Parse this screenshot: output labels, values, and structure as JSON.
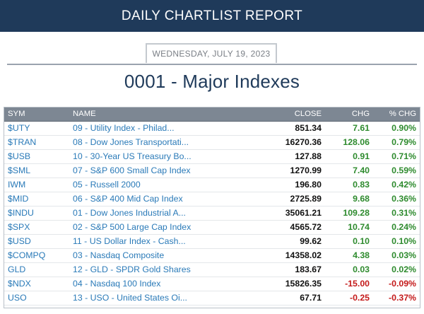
{
  "header": {
    "title": "DAILY CHARTLIST REPORT"
  },
  "report": {
    "date": "WEDNESDAY, JULY 19, 2023",
    "list_title": "0001 - Major Indexes"
  },
  "table": {
    "columns": {
      "sym": "SYM",
      "name": "NAME",
      "close": "CLOSE",
      "chg": "CHG",
      "pct": "% CHG"
    },
    "colors": {
      "positive": "#2e8b2e",
      "negative": "#c41a1a",
      "link": "#2a7ab8"
    },
    "rows": [
      {
        "sym": "$UTY",
        "name": "09 - Utility Index - Philad...",
        "close": "851.34",
        "chg": "7.61",
        "pct": "0.90%",
        "dir": "pos"
      },
      {
        "sym": "$TRAN",
        "name": "08 - Dow Jones Transportati...",
        "close": "16270.36",
        "chg": "128.06",
        "pct": "0.79%",
        "dir": "pos"
      },
      {
        "sym": "$USB",
        "name": "10 - 30-Year US Treasury Bo...",
        "close": "127.88",
        "chg": "0.91",
        "pct": "0.71%",
        "dir": "pos"
      },
      {
        "sym": "$SML",
        "name": "07 - S&P 600 Small Cap Index",
        "close": "1270.99",
        "chg": "7.40",
        "pct": "0.59%",
        "dir": "pos"
      },
      {
        "sym": "IWM",
        "name": "05 - Russell 2000",
        "close": "196.80",
        "chg": "0.83",
        "pct": "0.42%",
        "dir": "pos"
      },
      {
        "sym": "$MID",
        "name": "06 - S&P 400 Mid Cap Index",
        "close": "2725.89",
        "chg": "9.68",
        "pct": "0.36%",
        "dir": "pos"
      },
      {
        "sym": "$INDU",
        "name": "01 - Dow Jones Industrial A...",
        "close": "35061.21",
        "chg": "109.28",
        "pct": "0.31%",
        "dir": "pos"
      },
      {
        "sym": "$SPX",
        "name": "02 - S&P 500 Large Cap Index",
        "close": "4565.72",
        "chg": "10.74",
        "pct": "0.24%",
        "dir": "pos"
      },
      {
        "sym": "$USD",
        "name": "11 - US Dollar Index - Cash...",
        "close": "99.62",
        "chg": "0.10",
        "pct": "0.10%",
        "dir": "pos"
      },
      {
        "sym": "$COMPQ",
        "name": "03 - Nasdaq Composite",
        "close": "14358.02",
        "chg": "4.38",
        "pct": "0.03%",
        "dir": "pos"
      },
      {
        "sym": "GLD",
        "name": "12 - GLD - SPDR Gold Shares",
        "close": "183.67",
        "chg": "0.03",
        "pct": "0.02%",
        "dir": "pos"
      },
      {
        "sym": "$NDX",
        "name": "04 - Nasdaq 100 Index",
        "close": "15826.35",
        "chg": "-15.00",
        "pct": "-0.09%",
        "dir": "neg"
      },
      {
        "sym": "USO",
        "name": "13 - USO - United States Oi...",
        "close": "67.71",
        "chg": "-0.25",
        "pct": "-0.37%",
        "dir": "neg"
      }
    ]
  }
}
